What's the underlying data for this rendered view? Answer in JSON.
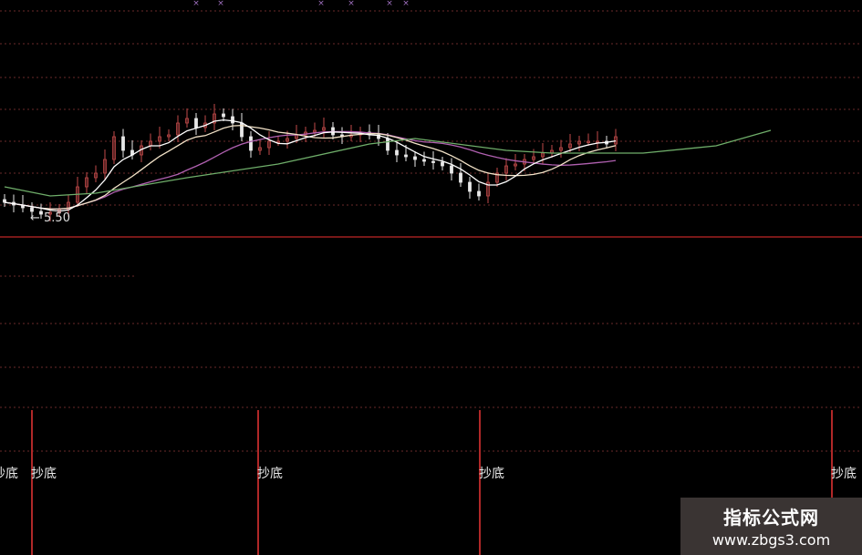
{
  "chart_data": {
    "type": "candlestick",
    "title": "",
    "price_annotation": "5.50",
    "colors": {
      "up": "#c24a4a",
      "down": "#e8e8e8",
      "ma_short": "#ffffff",
      "ma_mid": "#f3e3c8",
      "ma_purple": "#b060b0",
      "ma_long": "#6fae6a",
      "grid": "#6a2a2a",
      "divider": "#a02020",
      "signal": "#b02828"
    },
    "closes": [
      5.7,
      5.64,
      5.58,
      5.5,
      5.44,
      5.48,
      5.54,
      5.7,
      6.04,
      6.24,
      6.34,
      6.64,
      7.14,
      6.84,
      6.74,
      6.94,
      7.04,
      7.14,
      7.18,
      7.44,
      7.54,
      7.34,
      7.44,
      7.64,
      7.58,
      7.44,
      7.14,
      6.84,
      6.9,
      7.04,
      7.04,
      7.1,
      7.18,
      7.24,
      7.28,
      7.34,
      7.18,
      7.14,
      7.18,
      7.24,
      7.18,
      7.1,
      6.84,
      6.74,
      6.7,
      6.64,
      6.6,
      6.58,
      6.5,
      6.34,
      6.14,
      5.94,
      5.84,
      6.14,
      6.34,
      6.5,
      6.54,
      6.64,
      6.7,
      6.78,
      6.84,
      6.9,
      6.98,
      7.04,
      7.04,
      7.04,
      6.98,
      7.14
    ],
    "ma_long": [
      [
        0,
        6.04
      ],
      [
        5,
        5.84
      ],
      [
        10,
        5.9
      ],
      [
        20,
        6.24
      ],
      [
        30,
        6.54
      ],
      [
        40,
        6.98
      ],
      [
        45,
        7.1
      ],
      [
        55,
        6.84
      ],
      [
        60,
        6.78
      ],
      [
        70,
        6.78
      ],
      [
        78,
        6.94
      ],
      [
        84,
        7.28
      ]
    ],
    "signals": [
      {
        "label": "抄底"
      },
      {
        "label": "抄底"
      },
      {
        "label": "抄底"
      },
      {
        "label": "抄底"
      }
    ],
    "left_partial_label": "抄底"
  },
  "watermark": {
    "title": "指标公式网",
    "url": "www.zbgs3.com"
  }
}
